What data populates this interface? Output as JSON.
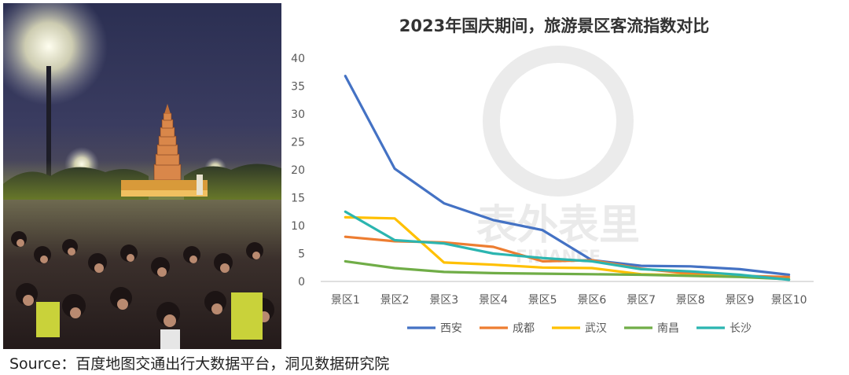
{
  "chart_data": {
    "type": "line",
    "title": "2023年国庆期间，旅游景区客流指数对比",
    "categories": [
      "景区1",
      "景区2",
      "景区3",
      "景区4",
      "景区5",
      "景区6",
      "景区7",
      "景区8",
      "景区9",
      "景区10"
    ],
    "ylim": [
      0,
      40
    ],
    "yticks": [
      0,
      5,
      10,
      15,
      20,
      25,
      30,
      35,
      40
    ],
    "grid": false,
    "legend_position": "bottom",
    "series": [
      {
        "name": "西安",
        "color": "#4472C4",
        "values": [
          36.8,
          20.2,
          14.0,
          11.0,
          9.2,
          3.8,
          2.8,
          2.7,
          2.2,
          1.2
        ]
      },
      {
        "name": "成都",
        "color": "#ED7D31",
        "values": [
          8.0,
          7.2,
          7.0,
          6.2,
          3.6,
          3.8,
          2.3,
          1.4,
          1.0,
          0.8
        ]
      },
      {
        "name": "武汉",
        "color": "#FFC000",
        "values": [
          11.5,
          11.3,
          3.4,
          3.0,
          2.5,
          2.4,
          1.3,
          1.1,
          0.9,
          0.4
        ]
      },
      {
        "name": "南昌",
        "color": "#70AD47",
        "values": [
          3.6,
          2.4,
          1.7,
          1.5,
          1.4,
          1.3,
          1.2,
          1.0,
          0.8,
          0.4
        ]
      },
      {
        "name": "长沙",
        "color": "#2BB5B0",
        "values": [
          12.5,
          7.4,
          6.8,
          5.0,
          4.2,
          3.6,
          2.2,
          1.8,
          1.2,
          0.3
        ]
      }
    ]
  },
  "watermark": {
    "text": "表外表里",
    "subtext": "FINANCE"
  },
  "source": "Source：百度地图交通出行大数据平台，洞见数据研究院"
}
